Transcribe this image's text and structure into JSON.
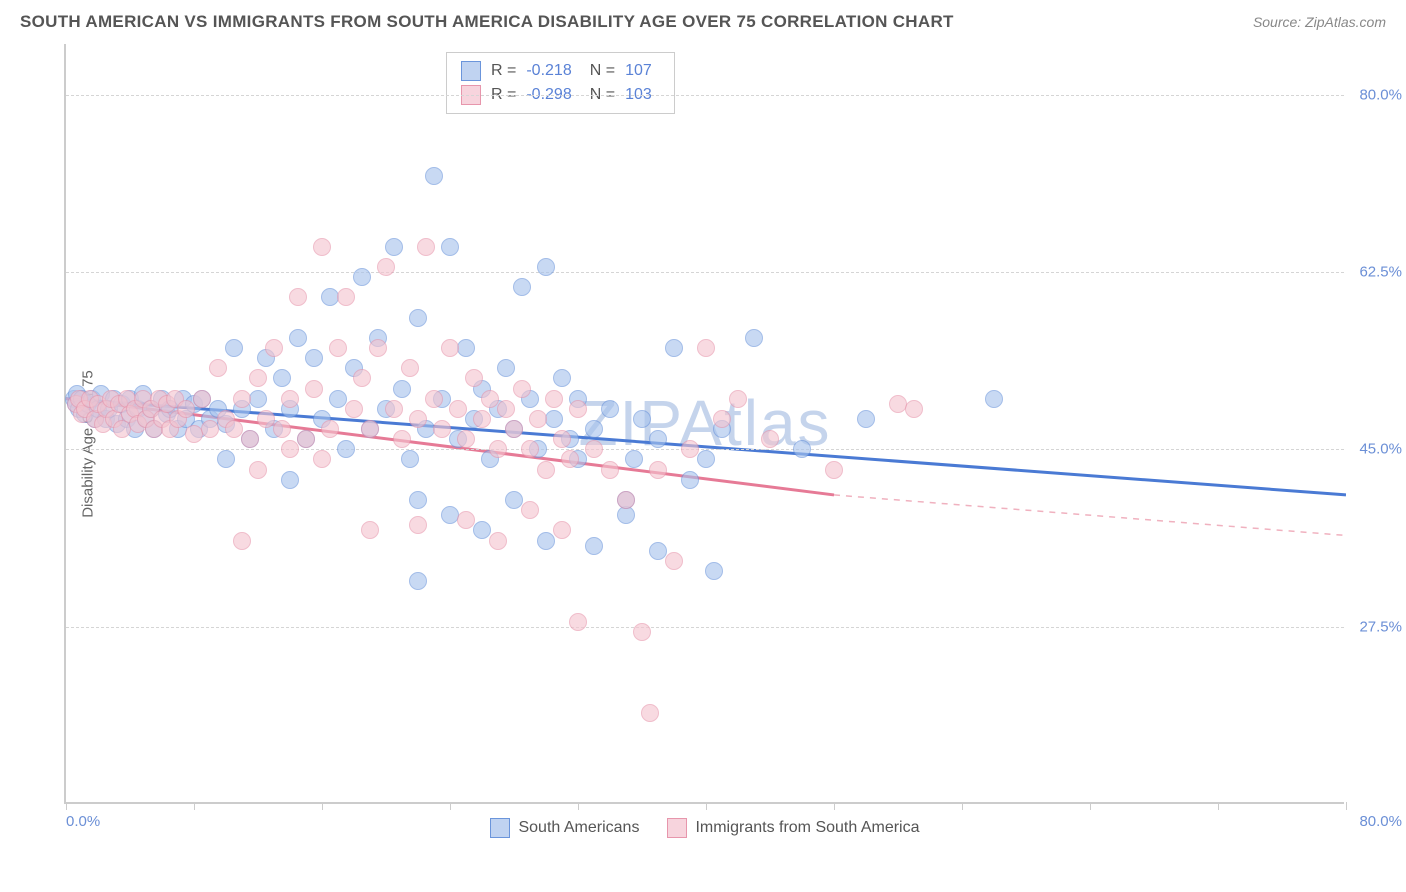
{
  "header": {
    "title": "SOUTH AMERICAN VS IMMIGRANTS FROM SOUTH AMERICA DISABILITY AGE OVER 75 CORRELATION CHART",
    "source_prefix": "Source: ",
    "source": "ZipAtlas.com"
  },
  "y_axis_label": "Disability Age Over 75",
  "watermark": "ZIPAtlas",
  "chart": {
    "type": "scatter",
    "xlim": [
      0,
      80
    ],
    "ylim": [
      10,
      85
    ],
    "y_ticks": [
      27.5,
      45.0,
      62.5,
      80.0
    ],
    "y_tick_labels": [
      "27.5%",
      "45.0%",
      "62.5%",
      "80.0%"
    ],
    "x_ticks": [
      0,
      8,
      16,
      24,
      32,
      40,
      48,
      56,
      64,
      72,
      80
    ],
    "x_min_label": "0.0%",
    "x_max_label": "80.0%",
    "background_color": "#ffffff",
    "grid_color": "#d5d5d5",
    "colors": {
      "blue_fill": "#a7c3ed",
      "blue_stroke": "#6b95db",
      "pink_fill": "#f4c4cf",
      "pink_stroke": "#e796ac",
      "tick_text": "#6b8fd6",
      "axis": "#cccccc"
    },
    "marker_radius": 9,
    "series": [
      {
        "name": "South Americans",
        "color": "blue",
        "trend": {
          "x1": 0,
          "y1": 50,
          "x2": 80,
          "y2": 40.5,
          "stroke": "#4a7ad4",
          "width": 3
        },
        "R": "-0.218",
        "N": "107",
        "points": [
          [
            0.5,
            50
          ],
          [
            0.6,
            49.5
          ],
          [
            0.7,
            50.5
          ],
          [
            0.8,
            49
          ],
          [
            1,
            50
          ],
          [
            1.2,
            48.5
          ],
          [
            1.4,
            49.5
          ],
          [
            1.6,
            50
          ],
          [
            1.8,
            48
          ],
          [
            2,
            49
          ],
          [
            2.2,
            50.5
          ],
          [
            2.5,
            48
          ],
          [
            2.7,
            49
          ],
          [
            3,
            50
          ],
          [
            3.2,
            47.5
          ],
          [
            3.5,
            49.5
          ],
          [
            3.8,
            48
          ],
          [
            4,
            50
          ],
          [
            4.3,
            47
          ],
          [
            4.5,
            49
          ],
          [
            4.8,
            50.5
          ],
          [
            5,
            48
          ],
          [
            5.3,
            49
          ],
          [
            5.5,
            47
          ],
          [
            6,
            50
          ],
          [
            6.3,
            48.5
          ],
          [
            6.5,
            49
          ],
          [
            7,
            47
          ],
          [
            7.3,
            50
          ],
          [
            7.5,
            48
          ],
          [
            8,
            49.5
          ],
          [
            8.3,
            47
          ],
          [
            8.5,
            50
          ],
          [
            9,
            48
          ],
          [
            9.5,
            49
          ],
          [
            10,
            47.5
          ],
          [
            10.5,
            55
          ],
          [
            11,
            49
          ],
          [
            11.5,
            46
          ],
          [
            12,
            50
          ],
          [
            12.5,
            54
          ],
          [
            13,
            47
          ],
          [
            13.5,
            52
          ],
          [
            14,
            49
          ],
          [
            14.5,
            56
          ],
          [
            15,
            46
          ],
          [
            15.5,
            54
          ],
          [
            16,
            48
          ],
          [
            16.5,
            60
          ],
          [
            17,
            50
          ],
          [
            17.5,
            45
          ],
          [
            18,
            53
          ],
          [
            18.5,
            62
          ],
          [
            19,
            47
          ],
          [
            19.5,
            56
          ],
          [
            20,
            49
          ],
          [
            20.5,
            65
          ],
          [
            21,
            51
          ],
          [
            21.5,
            44
          ],
          [
            22,
            58
          ],
          [
            22.5,
            47
          ],
          [
            23,
            72
          ],
          [
            23.5,
            50
          ],
          [
            24,
            65
          ],
          [
            24.5,
            46
          ],
          [
            25,
            55
          ],
          [
            25.5,
            48
          ],
          [
            26,
            51
          ],
          [
            26.5,
            44
          ],
          [
            27,
            49
          ],
          [
            27.5,
            53
          ],
          [
            28,
            47
          ],
          [
            28.5,
            61
          ],
          [
            29,
            50
          ],
          [
            29.5,
            45
          ],
          [
            30,
            63
          ],
          [
            30.5,
            48
          ],
          [
            31,
            52
          ],
          [
            31.5,
            46
          ],
          [
            32,
            50
          ],
          [
            22,
            32
          ],
          [
            24,
            38.5
          ],
          [
            26,
            37
          ],
          [
            28,
            40
          ],
          [
            30,
            36
          ],
          [
            32,
            44
          ],
          [
            33,
            47
          ],
          [
            34,
            49
          ],
          [
            35,
            38.5
          ],
          [
            35.5,
            44
          ],
          [
            36,
            48
          ],
          [
            37,
            46
          ],
          [
            38,
            55
          ],
          [
            39,
            42
          ],
          [
            40,
            44
          ],
          [
            40.5,
            33
          ],
          [
            41,
            47
          ],
          [
            37,
            35
          ],
          [
            33,
            35.5
          ],
          [
            35,
            40
          ],
          [
            43,
            56
          ],
          [
            46,
            45
          ],
          [
            50,
            48
          ],
          [
            58,
            50
          ],
          [
            22,
            40
          ],
          [
            14,
            42
          ],
          [
            10,
            44
          ]
        ]
      },
      {
        "name": "Immigrants from South America",
        "color": "pink",
        "trend_solid": {
          "x1": 0,
          "y1": 50,
          "x2": 48,
          "y2": 40.5,
          "stroke": "#e67a96",
          "width": 3
        },
        "trend_dash": {
          "x1": 48,
          "y1": 40.5,
          "x2": 80,
          "y2": 36.5,
          "stroke": "#f0b1bf",
          "width": 1.5
        },
        "R": "-0.298",
        "N": "103",
        "points": [
          [
            0.6,
            49.5
          ],
          [
            0.8,
            50
          ],
          [
            1,
            48.5
          ],
          [
            1.2,
            49
          ],
          [
            1.5,
            50
          ],
          [
            1.8,
            48
          ],
          [
            2,
            49.5
          ],
          [
            2.3,
            47.5
          ],
          [
            2.5,
            49
          ],
          [
            2.8,
            50
          ],
          [
            3,
            48
          ],
          [
            3.3,
            49.5
          ],
          [
            3.5,
            47
          ],
          [
            3.8,
            50
          ],
          [
            4,
            48.5
          ],
          [
            4.3,
            49
          ],
          [
            4.5,
            47.5
          ],
          [
            4.8,
            50
          ],
          [
            5,
            48
          ],
          [
            5.3,
            49
          ],
          [
            5.5,
            47
          ],
          [
            5.8,
            50
          ],
          [
            6,
            48
          ],
          [
            6.3,
            49.5
          ],
          [
            6.5,
            47
          ],
          [
            6.8,
            50
          ],
          [
            7,
            48
          ],
          [
            7.5,
            49
          ],
          [
            8,
            46.5
          ],
          [
            8.5,
            50
          ],
          [
            9,
            47
          ],
          [
            9.5,
            53
          ],
          [
            10,
            48
          ],
          [
            10.5,
            47
          ],
          [
            11,
            50
          ],
          [
            11.5,
            46
          ],
          [
            12,
            52
          ],
          [
            12.5,
            48
          ],
          [
            13,
            55
          ],
          [
            13.5,
            47
          ],
          [
            14,
            50
          ],
          [
            14.5,
            60
          ],
          [
            15,
            46
          ],
          [
            15.5,
            51
          ],
          [
            16,
            65
          ],
          [
            16.5,
            47
          ],
          [
            17,
            55
          ],
          [
            17.5,
            60
          ],
          [
            18,
            49
          ],
          [
            18.5,
            52
          ],
          [
            19,
            47
          ],
          [
            19.5,
            55
          ],
          [
            20,
            63
          ],
          [
            20.5,
            49
          ],
          [
            21,
            46
          ],
          [
            21.5,
            53
          ],
          [
            22,
            48
          ],
          [
            22.5,
            65
          ],
          [
            23,
            50
          ],
          [
            23.5,
            47
          ],
          [
            24,
            55
          ],
          [
            24.5,
            49
          ],
          [
            25,
            46
          ],
          [
            25.5,
            52
          ],
          [
            26,
            48
          ],
          [
            26.5,
            50
          ],
          [
            27,
            45
          ],
          [
            27.5,
            49
          ],
          [
            28,
            47
          ],
          [
            28.5,
            51
          ],
          [
            29,
            45
          ],
          [
            29.5,
            48
          ],
          [
            30,
            43
          ],
          [
            30.5,
            50
          ],
          [
            31,
            46
          ],
          [
            31.5,
            44
          ],
          [
            32,
            49
          ],
          [
            19,
            37
          ],
          [
            22,
            37.5
          ],
          [
            25,
            38
          ],
          [
            27,
            36
          ],
          [
            29,
            39
          ],
          [
            31,
            37
          ],
          [
            33,
            45
          ],
          [
            34,
            43
          ],
          [
            35,
            40
          ],
          [
            36,
            27
          ],
          [
            37,
            43
          ],
          [
            32,
            28
          ],
          [
            36.5,
            19
          ],
          [
            38,
            34
          ],
          [
            39,
            45
          ],
          [
            40,
            55
          ],
          [
            41,
            48
          ],
          [
            42,
            50
          ],
          [
            44,
            46
          ],
          [
            48,
            43
          ],
          [
            52,
            49.5
          ],
          [
            53,
            49
          ],
          [
            11,
            36
          ],
          [
            12,
            43
          ],
          [
            14,
            45
          ],
          [
            16,
            44
          ]
        ]
      }
    ]
  },
  "stats_box": {
    "rows": [
      {
        "swatch": "blue",
        "r_label": "R =",
        "r_val": "-0.218",
        "n_label": "N =",
        "n_val": "107"
      },
      {
        "swatch": "pink",
        "r_label": "R =",
        "r_val": "-0.298",
        "n_label": "N =",
        "n_val": "103"
      }
    ]
  },
  "bottom_legend": [
    {
      "swatch": "blue",
      "label": "South Americans"
    },
    {
      "swatch": "pink",
      "label": "Immigrants from South America"
    }
  ]
}
